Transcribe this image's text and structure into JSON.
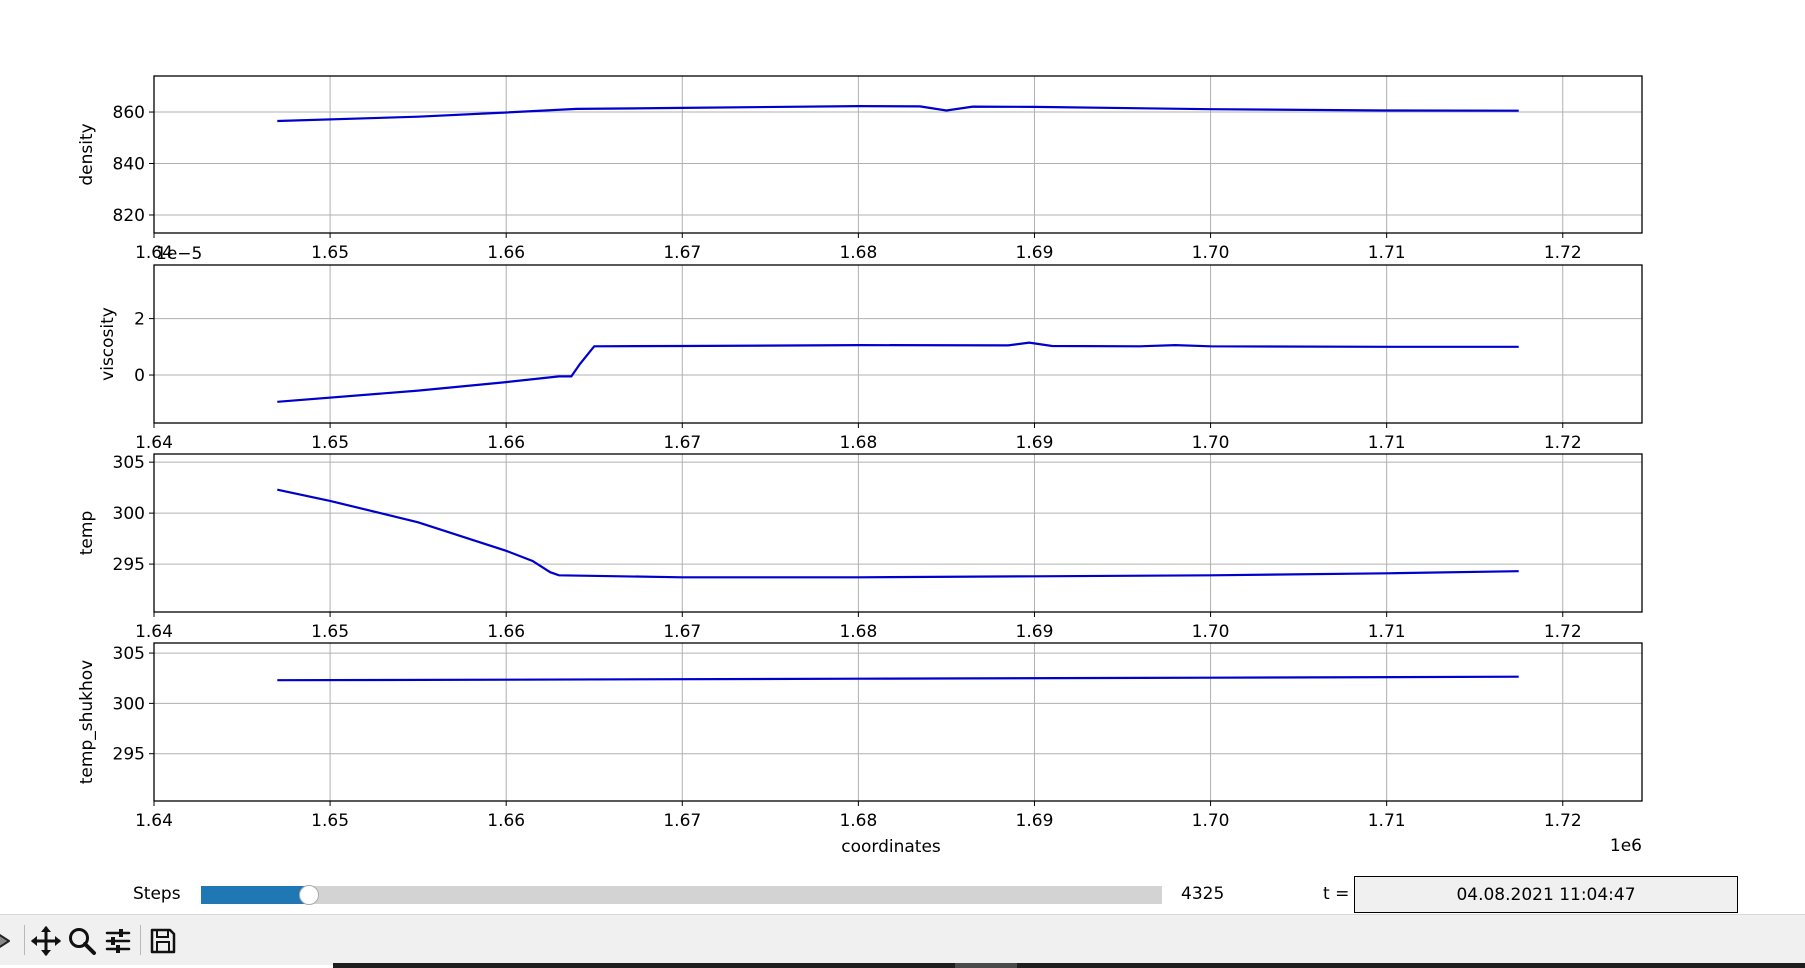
{
  "chart_data": [
    {
      "type": "line",
      "ylabel": "density",
      "xlim": [
        1640000,
        1724500
      ],
      "ylim": [
        813,
        874
      ],
      "yticks": [
        820,
        840,
        860
      ],
      "xticks": [
        1640000,
        1650000,
        1660000,
        1670000,
        1680000,
        1690000,
        1700000,
        1710000,
        1720000
      ],
      "xtick_labels": [
        "1.64",
        "1.65",
        "1.66",
        "1.67",
        "1.68",
        "1.69",
        "1.70",
        "1.71",
        "1.72"
      ],
      "offset_text": "1e−5",
      "grid": true,
      "series": [
        {
          "x": [
            1647000,
            1655000,
            1660000,
            1664000,
            1670000,
            1680000,
            1683500,
            1685000,
            1686500,
            1690000,
            1700000,
            1710000,
            1717500
          ],
          "y": [
            856.5,
            858.2,
            859.8,
            861.2,
            861.6,
            862.3,
            862.2,
            860.6,
            862.1,
            862.0,
            861.1,
            860.6,
            860.5
          ]
        }
      ]
    },
    {
      "type": "line",
      "ylabel": "viscosity",
      "xlim": [
        1640000,
        1724500
      ],
      "ylim": [
        -1.7,
        3.9
      ],
      "yticks": [
        0,
        2
      ],
      "xticks": [
        1640000,
        1650000,
        1660000,
        1670000,
        1680000,
        1690000,
        1700000,
        1710000,
        1720000
      ],
      "xtick_labels": [
        "1.64",
        "1.65",
        "1.66",
        "1.67",
        "1.68",
        "1.69",
        "1.70",
        "1.71",
        "1.72"
      ],
      "grid": true,
      "series": [
        {
          "x": [
            1647000,
            1655000,
            1660000,
            1663000,
            1663700,
            1664200,
            1665000,
            1670000,
            1680000,
            1688500,
            1689700,
            1691000,
            1696000,
            1698000,
            1700000,
            1710000,
            1717500
          ],
          "y": [
            -0.95,
            -0.55,
            -0.25,
            -0.05,
            -0.05,
            0.4,
            1.02,
            1.03,
            1.06,
            1.05,
            1.15,
            1.03,
            1.02,
            1.06,
            1.02,
            1.0,
            1.0
          ]
        }
      ]
    },
    {
      "type": "line",
      "ylabel": "temp",
      "xlim": [
        1640000,
        1724500
      ],
      "ylim": [
        290.3,
        305.8
      ],
      "yticks": [
        295,
        300,
        305
      ],
      "xticks": [
        1640000,
        1650000,
        1660000,
        1670000,
        1680000,
        1690000,
        1700000,
        1710000,
        1720000
      ],
      "xtick_labels": [
        "1.64",
        "1.65",
        "1.66",
        "1.67",
        "1.68",
        "1.69",
        "1.70",
        "1.71",
        "1.72"
      ],
      "grid": true,
      "series": [
        {
          "x": [
            1647000,
            1650000,
            1655000,
            1660000,
            1661500,
            1662500,
            1663000,
            1670000,
            1680000,
            1690000,
            1700000,
            1710000,
            1717500
          ],
          "y": [
            302.3,
            301.2,
            299.1,
            296.3,
            295.3,
            294.2,
            293.9,
            293.7,
            293.7,
            293.8,
            293.9,
            294.1,
            294.3
          ]
        }
      ]
    },
    {
      "type": "line",
      "ylabel": "temp_shukhov",
      "xlabel": "coordinates",
      "xlim": [
        1640000,
        1724500
      ],
      "ylim": [
        290.3,
        306.0
      ],
      "yticks": [
        295,
        300,
        305
      ],
      "xticks": [
        1640000,
        1650000,
        1660000,
        1670000,
        1680000,
        1690000,
        1700000,
        1710000,
        1720000
      ],
      "xtick_labels": [
        "1.64",
        "1.65",
        "1.66",
        "1.67",
        "1.68",
        "1.69",
        "1.70",
        "1.71",
        "1.72"
      ],
      "offset_text": "1e6",
      "grid": true,
      "series": [
        {
          "x": [
            1647000,
            1660000,
            1680000,
            1700000,
            1717500
          ],
          "y": [
            302.3,
            302.35,
            302.45,
            302.55,
            302.65
          ]
        }
      ]
    }
  ],
  "controls": {
    "steps_label": "Steps",
    "steps_value": "4325",
    "slider_fraction": 0.112,
    "t_label": "t =",
    "t_value": "04.08.2021 11:04:47"
  },
  "toolbar": {
    "icons": [
      "forward-icon",
      "pan-icon",
      "zoom-icon",
      "configure-subplots-icon",
      "save-icon"
    ]
  },
  "colors": {
    "line": "#0000cc",
    "slider_fill": "#1f77b4",
    "slider_track": "#d3d3d3",
    "toolbar_bg": "#f0f0f0"
  }
}
